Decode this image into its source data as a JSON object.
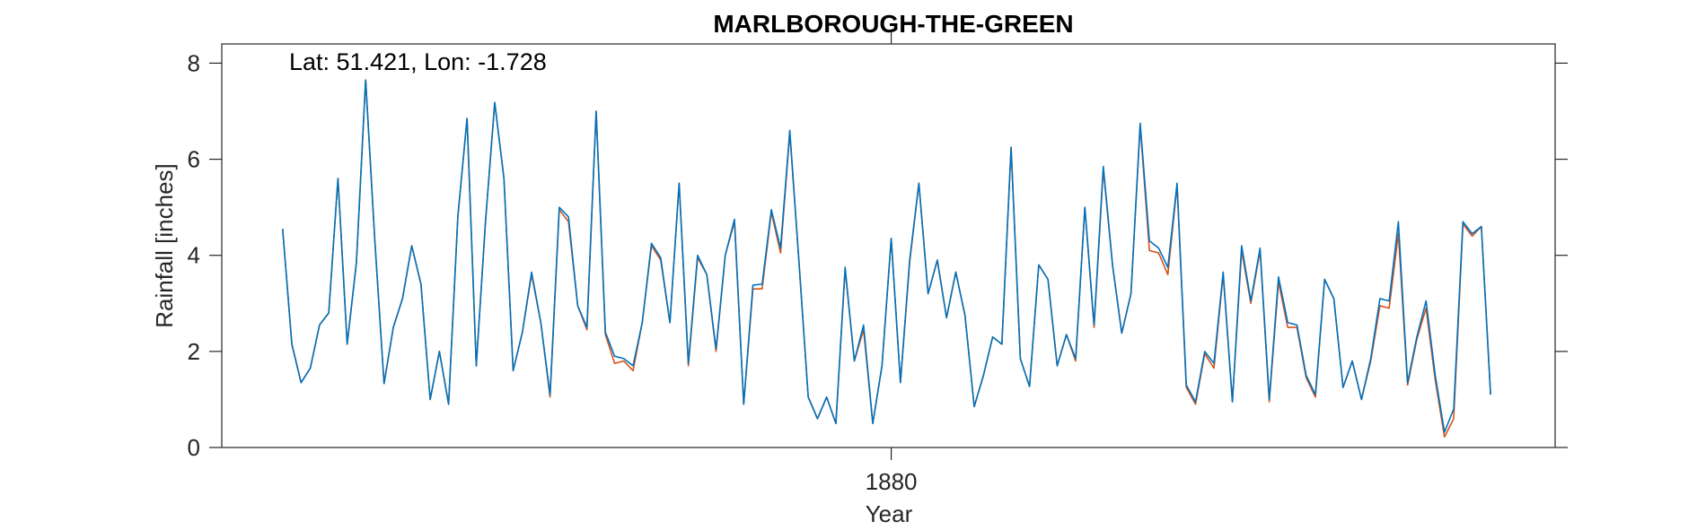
{
  "chart_data": {
    "type": "line",
    "title": "MARLBOROUGH-THE-GREEN",
    "annotation": "Lat: 51.421, Lon: -1.728",
    "xlabel": "Year",
    "ylabel": "Rainfall [inches]",
    "ylim": [
      0,
      8.4
    ],
    "yticks": [
      0,
      2,
      4,
      6,
      8
    ],
    "xticks": [
      {
        "value": 1880,
        "label": "1880"
      }
    ],
    "xlim": [
      1879.637,
      1880.36
    ],
    "x_start": 1879.67,
    "x_step": 0.005,
    "grid": false,
    "legend": "none",
    "series": [
      {
        "color": "#D95319",
        "values": [
          4.55,
          2.15,
          1.35,
          1.65,
          2.55,
          2.8,
          5.6,
          2.15,
          3.85,
          7.65,
          4.3,
          1.33,
          2.5,
          3.1,
          4.2,
          3.4,
          1.0,
          2.0,
          0.9,
          4.8,
          6.85,
          1.7,
          4.7,
          7.18,
          5.6,
          1.6,
          2.4,
          3.6,
          2.6,
          1.05,
          4.95,
          4.7,
          2.95,
          2.45,
          7.0,
          2.35,
          1.75,
          1.8,
          1.6,
          2.6,
          4.2,
          3.9,
          2.6,
          5.5,
          1.7,
          3.95,
          3.6,
          2.0,
          4.0,
          4.7,
          0.9,
          3.3,
          3.3,
          4.9,
          4.05,
          6.55,
          3.85,
          1.05,
          0.6,
          1.05,
          0.5,
          3.7,
          1.8,
          2.45,
          0.5,
          1.7,
          4.35,
          1.35,
          3.85,
          5.5,
          3.2,
          3.9,
          2.7,
          3.65,
          2.75,
          0.85,
          1.5,
          2.3,
          2.15,
          6.25,
          1.85,
          1.27,
          3.8,
          3.5,
          1.7,
          2.35,
          1.8,
          5.0,
          2.5,
          5.8,
          3.8,
          2.38,
          3.2,
          6.7,
          4.1,
          4.05,
          3.6,
          5.45,
          1.25,
          0.9,
          1.95,
          1.65,
          3.6,
          0.95,
          4.1,
          3.0,
          4.1,
          0.95,
          3.45,
          2.5,
          2.5,
          1.45,
          1.05,
          3.5,
          3.1,
          1.25,
          1.8,
          1.0,
          1.8,
          2.95,
          2.9,
          4.45,
          1.3,
          2.25,
          2.9,
          1.4,
          0.22,
          0.6,
          4.65,
          4.4,
          4.6,
          1.1
        ]
      },
      {
        "color": "#0072BD",
        "values": [
          4.55,
          2.15,
          1.35,
          1.65,
          2.55,
          2.8,
          5.6,
          2.15,
          3.85,
          7.65,
          4.3,
          1.33,
          2.5,
          3.1,
          4.2,
          3.4,
          1.0,
          2.0,
          0.9,
          4.8,
          6.85,
          1.7,
          4.7,
          7.18,
          5.6,
          1.6,
          2.4,
          3.65,
          2.6,
          1.1,
          5.0,
          4.8,
          2.95,
          2.5,
          7.0,
          2.4,
          1.9,
          1.85,
          1.7,
          2.6,
          4.25,
          3.95,
          2.6,
          5.5,
          1.75,
          4.0,
          3.6,
          2.05,
          4.0,
          4.75,
          0.9,
          3.38,
          3.4,
          4.95,
          4.15,
          6.6,
          3.85,
          1.05,
          0.6,
          1.05,
          0.5,
          3.75,
          1.8,
          2.55,
          0.5,
          1.7,
          4.35,
          1.35,
          3.9,
          5.5,
          3.2,
          3.9,
          2.7,
          3.65,
          2.75,
          0.85,
          1.5,
          2.3,
          2.15,
          6.25,
          1.85,
          1.27,
          3.8,
          3.5,
          1.7,
          2.35,
          1.85,
          5.0,
          2.55,
          5.85,
          3.8,
          2.38,
          3.2,
          6.75,
          4.3,
          4.15,
          3.75,
          5.5,
          1.3,
          0.95,
          2.0,
          1.75,
          3.65,
          0.95,
          4.2,
          3.05,
          4.15,
          1.0,
          3.55,
          2.6,
          2.55,
          1.5,
          1.1,
          3.5,
          3.1,
          1.25,
          1.8,
          1.0,
          1.85,
          3.1,
          3.05,
          4.7,
          1.35,
          2.3,
          3.05,
          1.5,
          0.32,
          0.8,
          4.7,
          4.45,
          4.6,
          1.1
        ]
      }
    ]
  }
}
